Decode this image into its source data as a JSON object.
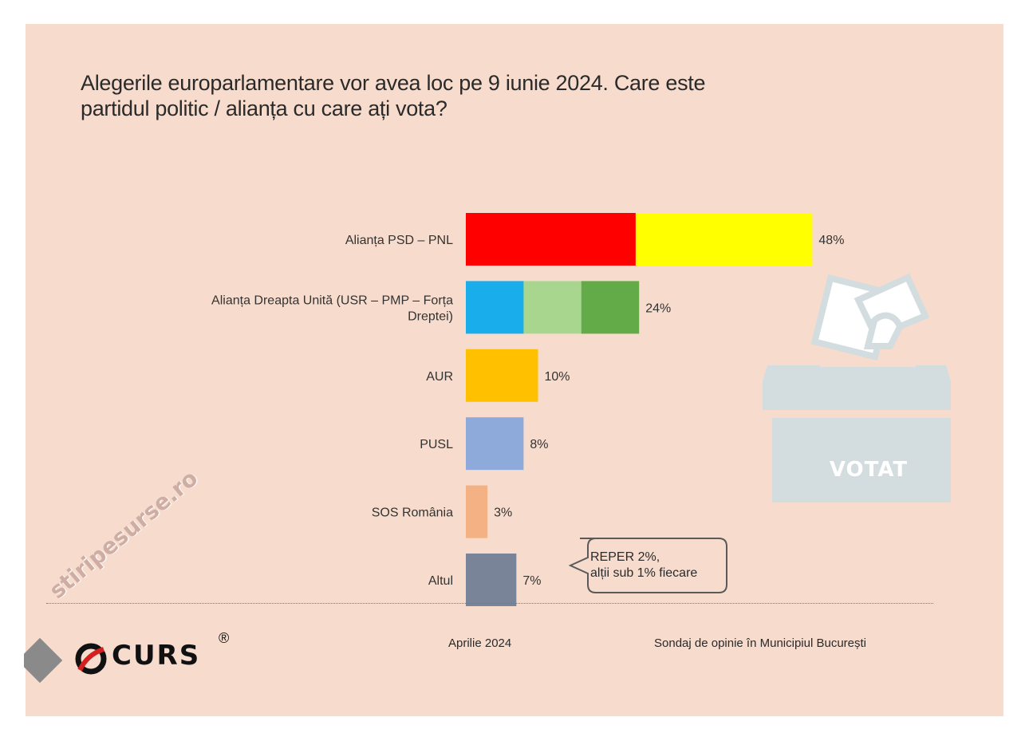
{
  "title_lines": [
    "Alegerile europarlamentare vor avea loc pe 9 iunie 2024. Care este",
    "partidul politic / alianța cu care ați vota?"
  ],
  "chart_data": {
    "type": "bar",
    "orientation": "horizontal",
    "title": "Alegerile europarlamentare vor avea loc pe 9 iunie 2024. Care este partidul politic / alianța cu care ați vota?",
    "unit": "%",
    "xlim": [
      0,
      50
    ],
    "grid": false,
    "categories": [
      "Alianța PSD – PNL",
      "Alianța Dreapta Unită (USR – PMP – Forța Dreptei)",
      "AUR",
      "PUSL",
      "SOS România",
      "Altul"
    ],
    "category_lines": [
      [
        "Alianța PSD – PNL"
      ],
      [
        "Alianța Dreapta Unită (USR – PMP – Forța",
        "Dreptei)"
      ],
      [
        "AUR"
      ],
      [
        "PUSL"
      ],
      [
        "SOS România"
      ],
      [
        "Altul"
      ]
    ],
    "values": [
      48,
      24,
      10,
      8,
      3,
      7
    ],
    "value_labels": [
      "48%",
      "24%",
      "10%",
      "8%",
      "3%",
      "7%"
    ],
    "bar_colors": [
      [
        "#ff0000",
        "#ffff00"
      ],
      [
        "#19adec",
        "#a8d68f",
        "#62ab48"
      ],
      [
        "#ffc000"
      ],
      [
        "#8eaadb"
      ],
      [
        "#f4b183"
      ],
      [
        "#7a8499"
      ]
    ],
    "annotation": [
      "REPER 2%,",
      "alții sub 1% fiecare"
    ]
  },
  "ballot_box": {
    "label": "VOTAT",
    "icon": "ballot-box-icon",
    "color": "#d3dde0"
  },
  "footer": {
    "logo": "CURS",
    "registered": "®",
    "date": "Aprilie 2024",
    "source": "Sondaj de opinie în Municipiul București"
  },
  "watermark": "stiripesurse.ro",
  "colors": {
    "background": "#f7dccd",
    "text": "#2a2a2a"
  }
}
